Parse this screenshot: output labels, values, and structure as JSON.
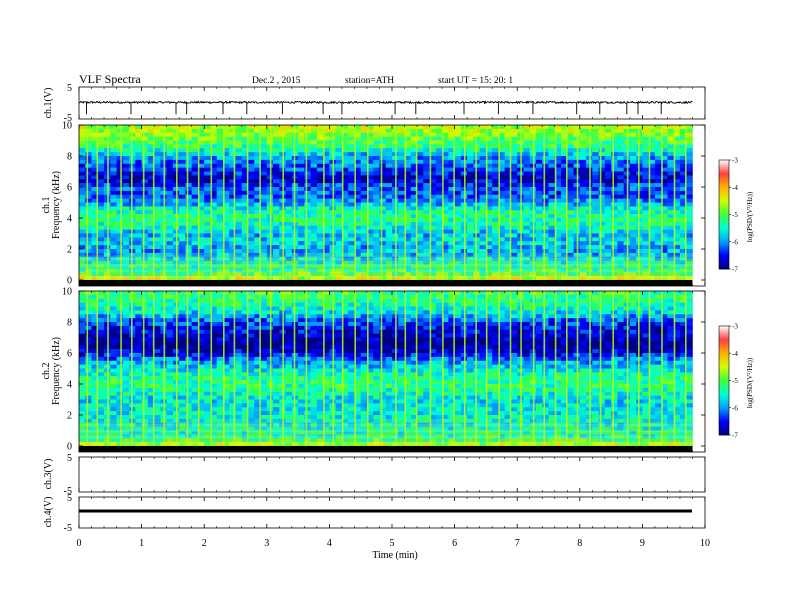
{
  "header": {
    "title": "VLF  Spectra",
    "date": "Dec.2  , 2015",
    "station": "station=ATH",
    "start": "start  UT  =    15: 20: 1"
  },
  "colors": {
    "axes": "#000000",
    "background": "#ffffff",
    "spectrogram_scale": [
      "#000080",
      "#0000ff",
      "#00a0ff",
      "#00ffd0",
      "#40ff40",
      "#d0ff00",
      "#ffb000",
      "#ff4040",
      "#ffffff"
    ]
  },
  "chart_data": [
    {
      "type": "line",
      "name": "ch1-waveform",
      "ylabel": "ch.1(V)",
      "ylim": [
        -5,
        5
      ],
      "yticks": [
        "5",
        "-5"
      ],
      "xlim": [
        0,
        10
      ],
      "baseline_v": 0.2,
      "noise_v": 0.3,
      "spikes_min": [
        0.12,
        0.83,
        1.55,
        1.72,
        2.3,
        2.68,
        3.25,
        3.9,
        4.2,
        5.05,
        5.38,
        6.15,
        6.7,
        7.25,
        7.95,
        8.32,
        8.75,
        8.93,
        9.3
      ]
    },
    {
      "type": "heatmap",
      "name": "ch1-spectrogram",
      "ylabel": "Frequency  (kHz)",
      "channel_label": "ch.1",
      "yticks": [
        "0",
        "2",
        "4",
        "6",
        "8",
        "10"
      ],
      "ylim": [
        0,
        10
      ],
      "xlim": [
        0,
        9.8
      ],
      "colorbar": {
        "label": "log(PSD/(V²/Hz))",
        "range": [
          -7,
          -3
        ],
        "ticks": [
          "-3",
          "-4",
          "-5",
          "-6",
          "-7"
        ]
      },
      "freq_band_log_psd": [
        [
          0,
          -4.3
        ],
        [
          0.5,
          -5.2
        ],
        [
          1,
          -5.3
        ],
        [
          1.5,
          -5.8
        ],
        [
          2,
          -6.0
        ],
        [
          2.5,
          -5.7
        ],
        [
          3,
          -5.9
        ],
        [
          3.5,
          -5.4
        ],
        [
          4,
          -5.3
        ],
        [
          4.5,
          -5.4
        ],
        [
          5,
          -6.0
        ],
        [
          5.5,
          -6.3
        ],
        [
          6,
          -6.2
        ],
        [
          6.5,
          -6.8
        ],
        [
          7,
          -6.4
        ],
        [
          8,
          -5.9
        ],
        [
          8.5,
          -5.3
        ],
        [
          9,
          -5.0
        ],
        [
          9.5,
          -4.7
        ],
        [
          10,
          -4.6
        ]
      ],
      "sferic_times_min": [
        0.12,
        0.28,
        0.45,
        0.66,
        0.83,
        1.02,
        1.18,
        1.35,
        1.55,
        1.72,
        1.9,
        2.1,
        2.3,
        2.47,
        2.68,
        2.88,
        3.05,
        3.25,
        3.43,
        3.62,
        3.9,
        4.05,
        4.2,
        4.4,
        4.6,
        4.82,
        5.05,
        5.2,
        5.38,
        5.6,
        5.8,
        5.98,
        6.15,
        6.33,
        6.5,
        6.7,
        6.88,
        7.05,
        7.25,
        7.42,
        7.6,
        7.78,
        7.95,
        8.15,
        8.32,
        8.52,
        8.75,
        8.93,
        9.1,
        9.3,
        9.5,
        9.68
      ]
    },
    {
      "type": "heatmap",
      "name": "ch2-spectrogram",
      "ylabel": "Frequency  (kHz)",
      "channel_label": "ch.2",
      "yticks": [
        "0",
        "2",
        "4",
        "6",
        "8",
        "10"
      ],
      "ylim": [
        0,
        10
      ],
      "xlim": [
        0,
        9.8
      ],
      "colorbar": {
        "label": "log(PSD/(V²/Hz))",
        "range": [
          -7,
          -3
        ],
        "ticks": [
          "-3",
          "-4",
          "-5",
          "-6",
          "-7"
        ]
      },
      "freq_band_log_psd": [
        [
          0,
          -4.4
        ],
        [
          0.5,
          -5.3
        ],
        [
          1,
          -5.4
        ],
        [
          1.5,
          -5.5
        ],
        [
          2,
          -5.6
        ],
        [
          2.5,
          -5.6
        ],
        [
          3,
          -5.7
        ],
        [
          3.5,
          -5.4
        ],
        [
          4,
          -5.2
        ],
        [
          4.5,
          -5.3
        ],
        [
          5,
          -5.7
        ],
        [
          5.5,
          -6.0
        ],
        [
          6,
          -6.6
        ],
        [
          6.5,
          -7.0
        ],
        [
          7,
          -6.8
        ],
        [
          8,
          -6.3
        ],
        [
          8.5,
          -5.8
        ],
        [
          9,
          -5.4
        ],
        [
          9.5,
          -5.2
        ],
        [
          10,
          -5.1
        ]
      ],
      "sferic_times_min": [
        0.12,
        0.28,
        0.45,
        0.66,
        0.83,
        1.02,
        1.18,
        1.35,
        1.55,
        1.72,
        1.9,
        2.1,
        2.3,
        2.47,
        2.68,
        2.88,
        3.05,
        3.25,
        3.43,
        3.62,
        3.9,
        4.05,
        4.2,
        4.4,
        4.6,
        4.82,
        5.05,
        5.2,
        5.38,
        5.6,
        5.8,
        5.98,
        6.15,
        6.33,
        6.5,
        6.7,
        6.88,
        7.05,
        7.25,
        7.42,
        7.6,
        7.78,
        7.95,
        8.15,
        8.32,
        8.52,
        8.75,
        8.93,
        9.1,
        9.3,
        9.5,
        9.68
      ]
    },
    {
      "type": "line",
      "name": "ch3-waveform",
      "ylabel": "ch.3(V)",
      "ylim": [
        -5,
        5
      ],
      "yticks": [
        "5",
        "-5"
      ],
      "xlim": [
        0,
        10
      ],
      "note_values": "no data trace"
    },
    {
      "type": "line",
      "name": "ch4-waveform",
      "ylabel": "ch.4(V)",
      "ylim": [
        -5,
        5
      ],
      "yticks": [
        "5",
        "-5"
      ],
      "xlim": [
        0,
        9.8
      ],
      "baseline_v": 0.0
    }
  ],
  "xaxis": {
    "label": "Time  (min)",
    "ticks": [
      "0",
      "1",
      "2",
      "3",
      "4",
      "5",
      "6",
      "7",
      "8",
      "9",
      "10"
    ]
  }
}
